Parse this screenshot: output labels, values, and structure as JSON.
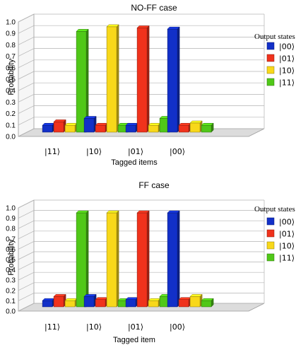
{
  "colors": {
    "state_00": "#1230c8",
    "state_01": "#f0321c",
    "state_10": "#f8d81a",
    "state_11": "#50c818"
  },
  "chart_data": [
    {
      "type": "bar",
      "title": "NO-FF case",
      "xlabel": "Tagged items",
      "ylabel": "Probability",
      "ylim": [
        0,
        1.0
      ],
      "yticks": [
        "0.0",
        "0.1",
        "0.2",
        "0.3",
        "0.4",
        "0.5",
        "0.6",
        "0.7",
        "0.8",
        "0.9",
        "1.0"
      ],
      "categories": [
        "|11⟩",
        "|10⟩",
        "|01⟩",
        "|00⟩"
      ],
      "legend_title": "Output states",
      "legend_position": "right",
      "grid": true,
      "series": [
        {
          "name": "|00⟩",
          "values": [
            0.06,
            0.12,
            0.06,
            0.9
          ]
        },
        {
          "name": "|01⟩",
          "values": [
            0.09,
            0.06,
            0.91,
            0.06
          ]
        },
        {
          "name": "|10⟩",
          "values": [
            0.06,
            0.92,
            0.06,
            0.08
          ]
        },
        {
          "name": "|11⟩",
          "values": [
            0.88,
            0.06,
            0.12,
            0.06
          ]
        }
      ]
    },
    {
      "type": "bar",
      "title": "FF case",
      "xlabel": "Tagged item",
      "ylabel": "Probability",
      "ylim": [
        0,
        1.0
      ],
      "yticks": [
        "0.0",
        "0.1",
        "0.2",
        "0.3",
        "0.4",
        "0.5",
        "0.6",
        "0.7",
        "0.8",
        "0.9",
        "1.0"
      ],
      "categories": [
        "|11⟩",
        "|10⟩",
        "|01⟩",
        "|00⟩"
      ],
      "legend_title": "Output states",
      "legend_position": "right",
      "grid": true,
      "series": [
        {
          "name": "|00⟩",
          "values": [
            0.06,
            0.1,
            0.07,
            0.91
          ]
        },
        {
          "name": "|01⟩",
          "values": [
            0.1,
            0.07,
            0.91,
            0.07
          ]
        },
        {
          "name": "|10⟩",
          "values": [
            0.06,
            0.91,
            0.06,
            0.1
          ]
        },
        {
          "name": "|11⟩",
          "values": [
            0.91,
            0.06,
            0.1,
            0.06
          ]
        }
      ]
    }
  ]
}
